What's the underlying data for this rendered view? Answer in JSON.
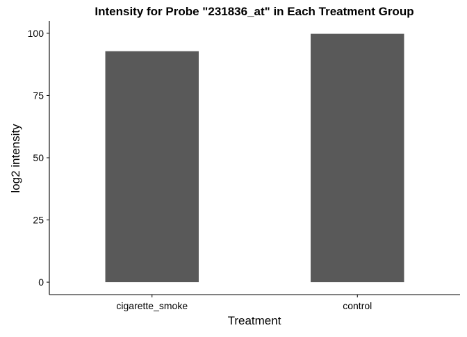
{
  "chart_data": {
    "type": "bar",
    "title": "Intensity for Probe \"231836_at\" in Each Treatment Group",
    "xlabel": "Treatment",
    "ylabel": "log2 intensity",
    "categories": [
      "cigarette_smoke",
      "control"
    ],
    "values": [
      92.8,
      99.8
    ],
    "ylim": [
      -5,
      105
    ],
    "yticks": [
      0,
      25,
      50,
      75,
      100
    ],
    "grid": false,
    "legend": "none",
    "colors": {
      "bar": "#595959",
      "axis": "#000000",
      "background": "#ffffff"
    }
  }
}
